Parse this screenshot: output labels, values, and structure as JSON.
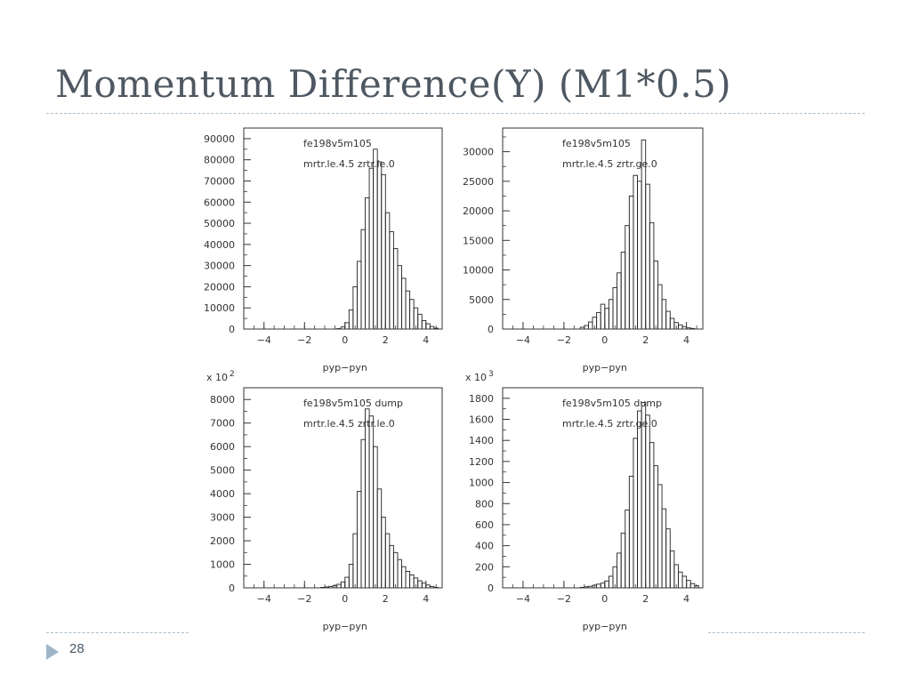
{
  "title": {
    "text": "Momentum Difference(Y) (M1*0.5)"
  },
  "footer": {
    "page_number": "28"
  },
  "chart_data": [
    {
      "type": "bar",
      "annotation_line1": "fe198v5m105",
      "annotation_line2": "mrtr.le.4.5 zrtr.le.0",
      "xlabel": "pyp−pyn",
      "multiplier": "",
      "multiplier_exp": "",
      "xlim": [
        -5,
        4.8
      ],
      "ylim": [
        0,
        95000
      ],
      "xticks": [
        -4,
        -2,
        0,
        2,
        4
      ],
      "xtick_labels": [
        "−4",
        "−2",
        "0",
        "2",
        "4"
      ],
      "yticks": [
        0,
        10000,
        20000,
        30000,
        40000,
        50000,
        60000,
        70000,
        80000,
        90000
      ],
      "ytick_labels": [
        "0",
        "10000",
        "20000",
        "30000",
        "40000",
        "50000",
        "60000",
        "70000",
        "80000",
        "90000"
      ],
      "bin_width": 0.2,
      "x": [
        -0.4,
        -0.2,
        0.0,
        0.2,
        0.4,
        0.6,
        0.8,
        1.0,
        1.2,
        1.4,
        1.6,
        1.8,
        2.0,
        2.2,
        2.4,
        2.6,
        2.8,
        3.0,
        3.2,
        3.4,
        3.6,
        3.8,
        4.0,
        4.2,
        4.4
      ],
      "values": [
        200,
        1000,
        3000,
        9000,
        20000,
        32000,
        47000,
        62000,
        76000,
        85000,
        79000,
        73000,
        55000,
        46000,
        38000,
        30000,
        24000,
        18000,
        14000,
        10000,
        7000,
        4000,
        2500,
        1200,
        400
      ]
    },
    {
      "type": "bar",
      "annotation_line1": "fe198v5m105",
      "annotation_line2": "mrtr.le.4.5 zrtr.ge.0",
      "xlabel": "pyp−pyn",
      "multiplier": "",
      "multiplier_exp": "",
      "xlim": [
        -5,
        4.8
      ],
      "ylim": [
        0,
        34000
      ],
      "xticks": [
        -4,
        -2,
        0,
        2,
        4
      ],
      "xtick_labels": [
        "−4",
        "−2",
        "0",
        "2",
        "4"
      ],
      "yticks": [
        0,
        5000,
        10000,
        15000,
        20000,
        25000,
        30000
      ],
      "ytick_labels": [
        "0",
        "5000",
        "10000",
        "15000",
        "20000",
        "25000",
        "30000"
      ],
      "bin_width": 0.2,
      "x": [
        -1.2,
        -1.0,
        -0.8,
        -0.6,
        -0.4,
        -0.2,
        0.0,
        0.2,
        0.4,
        0.6,
        0.8,
        1.0,
        1.2,
        1.4,
        1.6,
        1.8,
        2.0,
        2.2,
        2.4,
        2.6,
        2.8,
        3.0,
        3.2,
        3.4,
        3.6,
        3.8,
        4.0,
        4.2
      ],
      "values": [
        300,
        600,
        1200,
        2000,
        2800,
        4200,
        3500,
        5000,
        7000,
        9500,
        13000,
        17500,
        22500,
        26000,
        25000,
        32000,
        24500,
        18000,
        11500,
        7500,
        5000,
        3000,
        1800,
        1100,
        700,
        400,
        200,
        100
      ]
    },
    {
      "type": "bar",
      "annotation_line1": "fe198v5m105 dump",
      "annotation_line2": "mrtr.le.4.5 zrtr.le.0",
      "xlabel": "pyp−pyn",
      "multiplier": "x 10",
      "multiplier_exp": "2",
      "xlim": [
        -5,
        4.8
      ],
      "ylim": [
        0,
        8500
      ],
      "xticks": [
        -4,
        -2,
        0,
        2,
        4
      ],
      "xtick_labels": [
        "−4",
        "−2",
        "0",
        "2",
        "4"
      ],
      "yticks": [
        0,
        1000,
        2000,
        3000,
        4000,
        5000,
        6000,
        7000,
        8000
      ],
      "ytick_labels": [
        "0",
        "1000",
        "2000",
        "3000",
        "4000",
        "5000",
        "6000",
        "7000",
        "8000"
      ],
      "bin_width": 0.2,
      "x": [
        -1.2,
        -1.0,
        -0.8,
        -0.6,
        -0.4,
        -0.2,
        0.0,
        0.2,
        0.4,
        0.6,
        0.8,
        1.0,
        1.2,
        1.4,
        1.6,
        1.8,
        2.0,
        2.2,
        2.4,
        2.6,
        2.8,
        3.0,
        3.2,
        3.4,
        3.6,
        3.8,
        4.0,
        4.2,
        4.4
      ],
      "values": [
        20,
        40,
        60,
        100,
        150,
        250,
        450,
        1000,
        2300,
        4100,
        6300,
        7600,
        7300,
        6000,
        4200,
        3000,
        2300,
        1800,
        1500,
        1200,
        900,
        700,
        550,
        420,
        300,
        200,
        120,
        60,
        20
      ]
    },
    {
      "type": "bar",
      "annotation_line1": "fe198v5m105 dump",
      "annotation_line2": "mrtr.le.4.5 zrtr.ge.0",
      "xlabel": "pyp−pyn",
      "multiplier": "x 10",
      "multiplier_exp": "3",
      "xlim": [
        -5,
        4.8
      ],
      "ylim": [
        0,
        1900
      ],
      "xticks": [
        -4,
        -2,
        0,
        2,
        4
      ],
      "xtick_labels": [
        "−4",
        "−2",
        "0",
        "2",
        "4"
      ],
      "yticks": [
        0,
        200,
        400,
        600,
        800,
        1000,
        1200,
        1400,
        1600,
        1800
      ],
      "ytick_labels": [
        "0",
        "200",
        "400",
        "600",
        "800",
        "1000",
        "1200",
        "1400",
        "1600",
        "1800"
      ],
      "bin_width": 0.2,
      "x": [
        -1.2,
        -1.0,
        -0.8,
        -0.6,
        -0.4,
        -0.2,
        0.0,
        0.2,
        0.4,
        0.6,
        0.8,
        1.0,
        1.2,
        1.4,
        1.6,
        1.8,
        2.0,
        2.2,
        2.4,
        2.6,
        2.8,
        3.0,
        3.2,
        3.4,
        3.6,
        3.8,
        4.0,
        4.2,
        4.4
      ],
      "values": [
        5,
        10,
        15,
        25,
        35,
        45,
        65,
        110,
        200,
        330,
        520,
        740,
        1060,
        1420,
        1680,
        1760,
        1640,
        1380,
        1160,
        980,
        750,
        560,
        350,
        220,
        150,
        110,
        70,
        40,
        20
      ]
    }
  ]
}
